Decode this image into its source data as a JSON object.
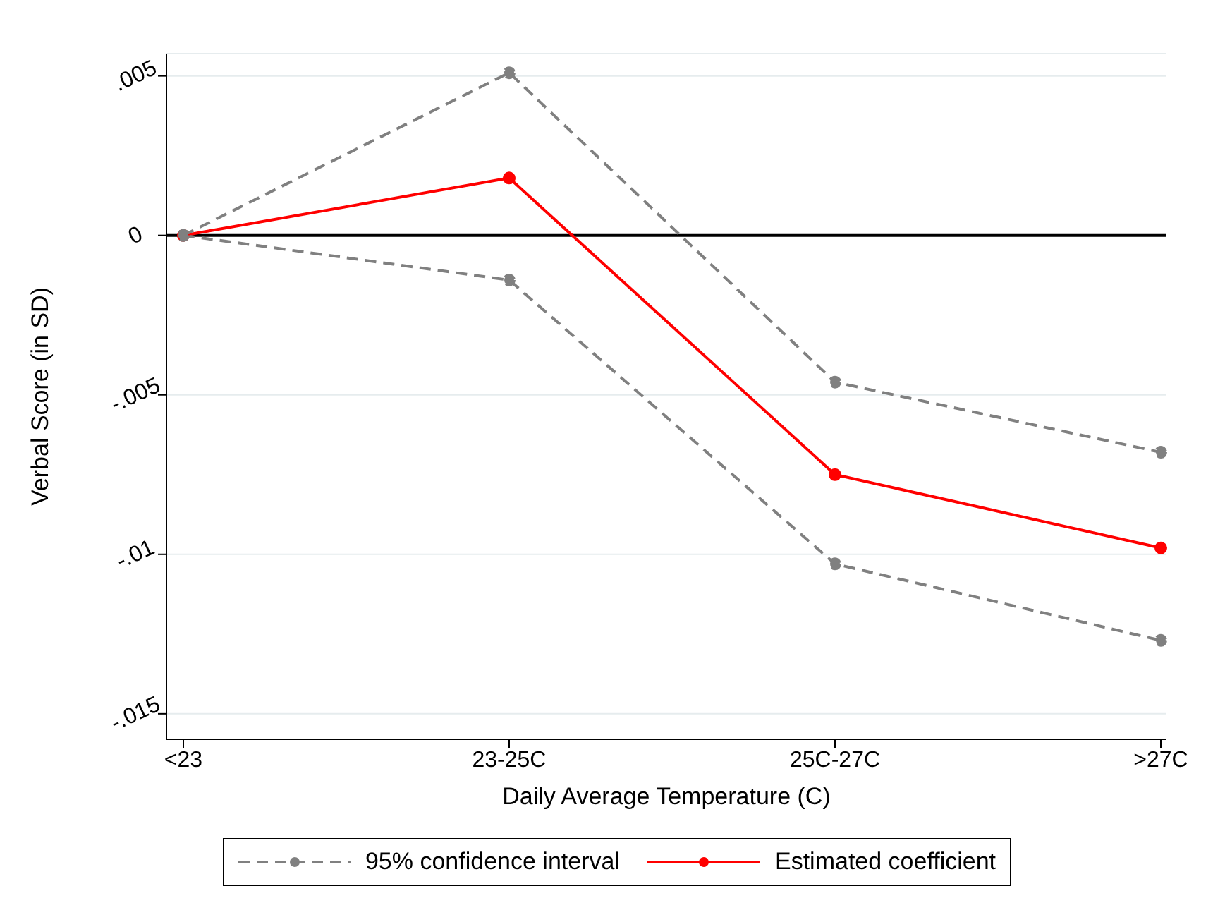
{
  "chart_data": {
    "type": "line",
    "xlabel": "Daily Average Temperature (C)",
    "ylabel": "Verbal Score (in SD)",
    "categories": [
      "<23",
      "23-25C",
      "25C-27C",
      ">27C"
    ],
    "series": [
      {
        "name": "Estimated coefficient",
        "color": "#ff0000",
        "values": [
          0,
          0.0018,
          -0.0075,
          -0.0098
        ],
        "line_style": "solid"
      },
      {
        "name": "95% confidence interval",
        "color": "#808080",
        "values": [
          0,
          0.0051,
          -0.0046,
          -0.0068
        ],
        "line_style": "dashed"
      },
      {
        "color": "#808080",
        "values": [
          0,
          -0.0014,
          -0.0103,
          -0.0127
        ],
        "line_style": "dashed"
      }
    ],
    "ylim": [
      -0.0158,
      0.0057
    ],
    "yticks": [
      {
        "value": 0.005,
        "label": ".005"
      },
      {
        "value": 0,
        "label": "0"
      },
      {
        "value": -0.005,
        "label": "-.005"
      },
      {
        "value": -0.01,
        "label": "-.01"
      },
      {
        "value": -0.015,
        "label": "-.015"
      }
    ],
    "ref_lines": [
      {
        "axis": "y",
        "value": 0,
        "color": "#000000"
      }
    ],
    "grid": "y",
    "legend": "bottom",
    "marker": "circle"
  }
}
